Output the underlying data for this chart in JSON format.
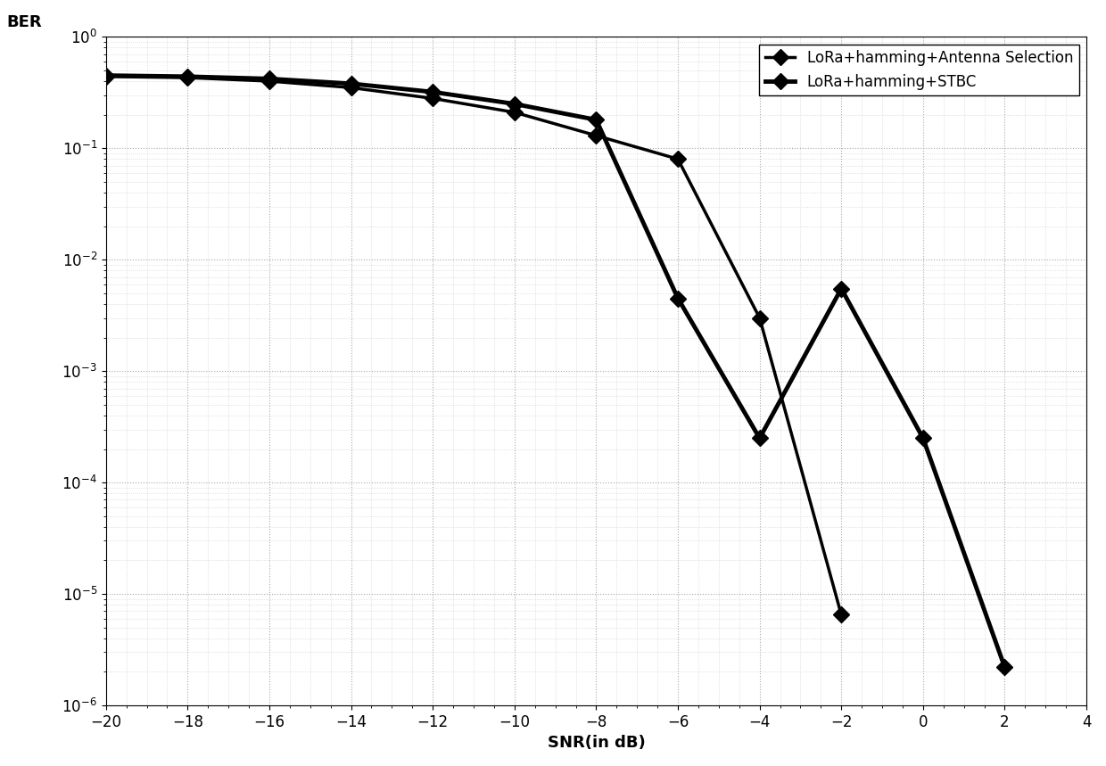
{
  "title": "",
  "xlabel": "SNR(in dB)",
  "ylabel": "BER",
  "xlim": [
    -20,
    4
  ],
  "ylim_log": [
    -6,
    0
  ],
  "xticks": [
    -20,
    -18,
    -16,
    -14,
    -12,
    -10,
    -8,
    -6,
    -4,
    -2,
    0,
    2,
    4
  ],
  "background_color": "#ffffff",
  "series1_label": "LoRa+hamming+Antenna Selection",
  "series2_label": "LoRa+hamming+STBC",
  "series1_x": [
    -20,
    -18,
    -16,
    -14,
    -12,
    -10,
    -8,
    -6,
    -4,
    -2
  ],
  "series1_y": [
    0.44,
    0.43,
    0.4,
    0.35,
    0.28,
    0.21,
    0.13,
    0.08,
    0.003,
    6.5e-06
  ],
  "series2_x": [
    -20,
    -18,
    -16,
    -14,
    -12,
    -10,
    -8,
    -6,
    -4,
    -2,
    0,
    2
  ],
  "series2_y": [
    0.45,
    0.44,
    0.42,
    0.38,
    0.32,
    0.25,
    0.18,
    0.0045,
    0.00025,
    0.0055,
    0.00025,
    2.2e-06
  ],
  "line_color": "#000000",
  "linewidth": 2.5,
  "markersize": 9,
  "grid_major_color": "#aaaaaa",
  "grid_minor_color": "#cccccc"
}
